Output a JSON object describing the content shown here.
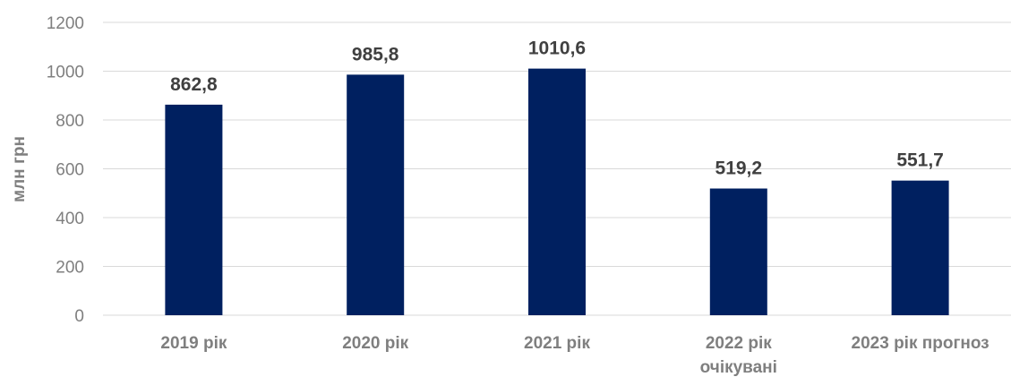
{
  "chart_data": {
    "type": "bar",
    "categories": [
      [
        "2019 рік"
      ],
      [
        "2020 рік"
      ],
      [
        "2021 рік"
      ],
      [
        "2022 рік",
        "очікувані"
      ],
      [
        "2023 рік прогноз"
      ]
    ],
    "values": [
      862.8,
      985.8,
      1010.6,
      519.2,
      551.7
    ],
    "data_labels": [
      "862,8",
      "985,8",
      "1010,6",
      "519,2",
      "551,7"
    ],
    "title": "",
    "xlabel": "",
    "ylabel": "млн грн",
    "ylim": [
      0,
      1200
    ],
    "yticks": [
      0,
      200,
      400,
      600,
      800,
      1000,
      1200
    ],
    "grid": true,
    "legend": "none",
    "colors": {
      "bar": "#002060",
      "grid": "#d9d9d9",
      "tick_text": "#7f7f7f",
      "label_text": "#404040"
    }
  }
}
